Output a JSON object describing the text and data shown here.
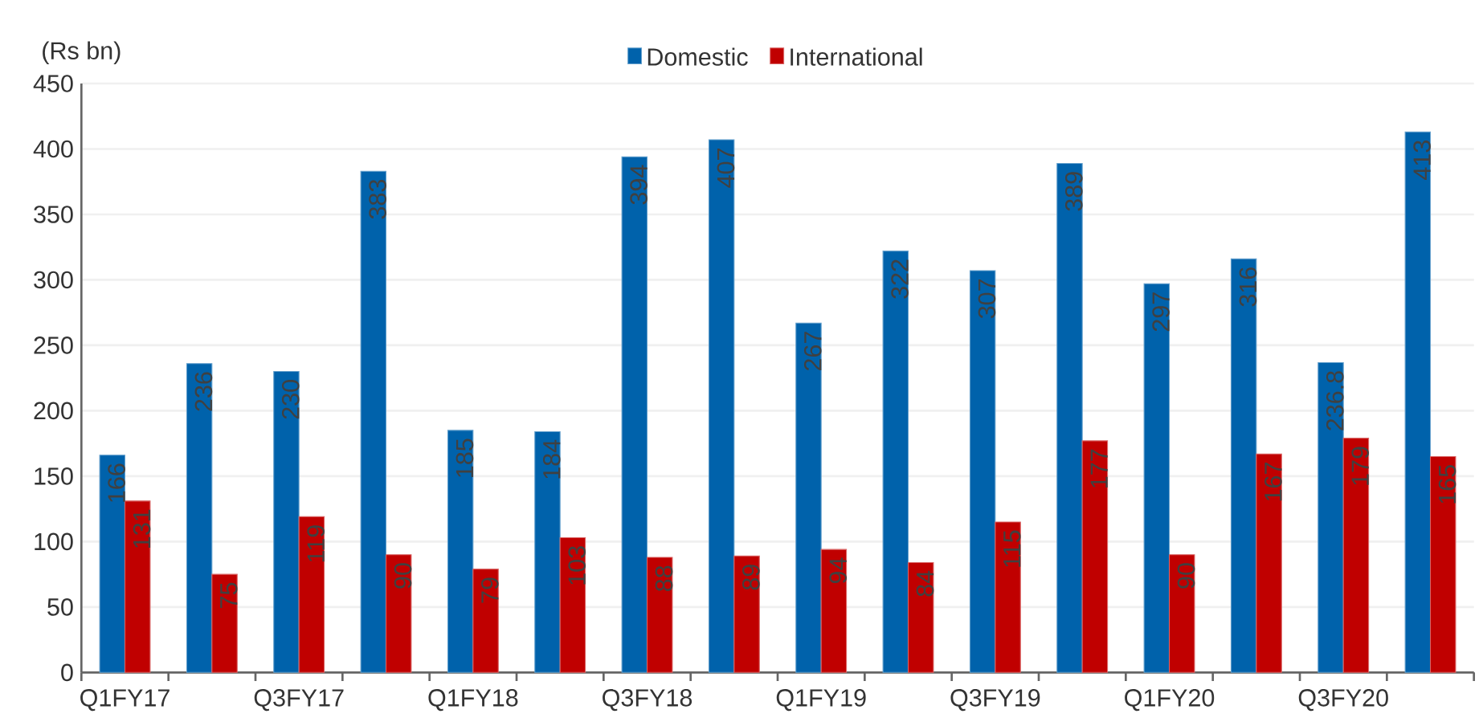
{
  "chart_data": {
    "type": "bar",
    "ylabel": "(Rs bn)",
    "categories": [
      "Q1FY17",
      null,
      "Q3FY17",
      null,
      "Q1FY18",
      null,
      "Q3FY18",
      null,
      "Q1FY19",
      null,
      "Q3FY19",
      null,
      "Q1FY20",
      null,
      "Q3FY20",
      null
    ],
    "series": [
      {
        "name": "Domestic",
        "color": "#0062ab",
        "values": [
          166,
          236,
          230,
          383,
          185,
          184,
          394,
          407,
          267,
          322,
          307,
          389,
          297,
          316,
          236.8,
          413
        ]
      },
      {
        "name": "International",
        "color": "#c00000",
        "values": [
          131,
          75,
          119,
          90,
          79,
          103,
          88,
          89,
          94,
          84,
          115,
          177,
          90,
          167,
          179,
          165
        ]
      }
    ],
    "ylim": [
      0,
      450
    ],
    "yticks": [
      0,
      50,
      100,
      150,
      200,
      250,
      300,
      350,
      400,
      450
    ],
    "grid": "y",
    "legend": "top",
    "data_labels": true
  }
}
